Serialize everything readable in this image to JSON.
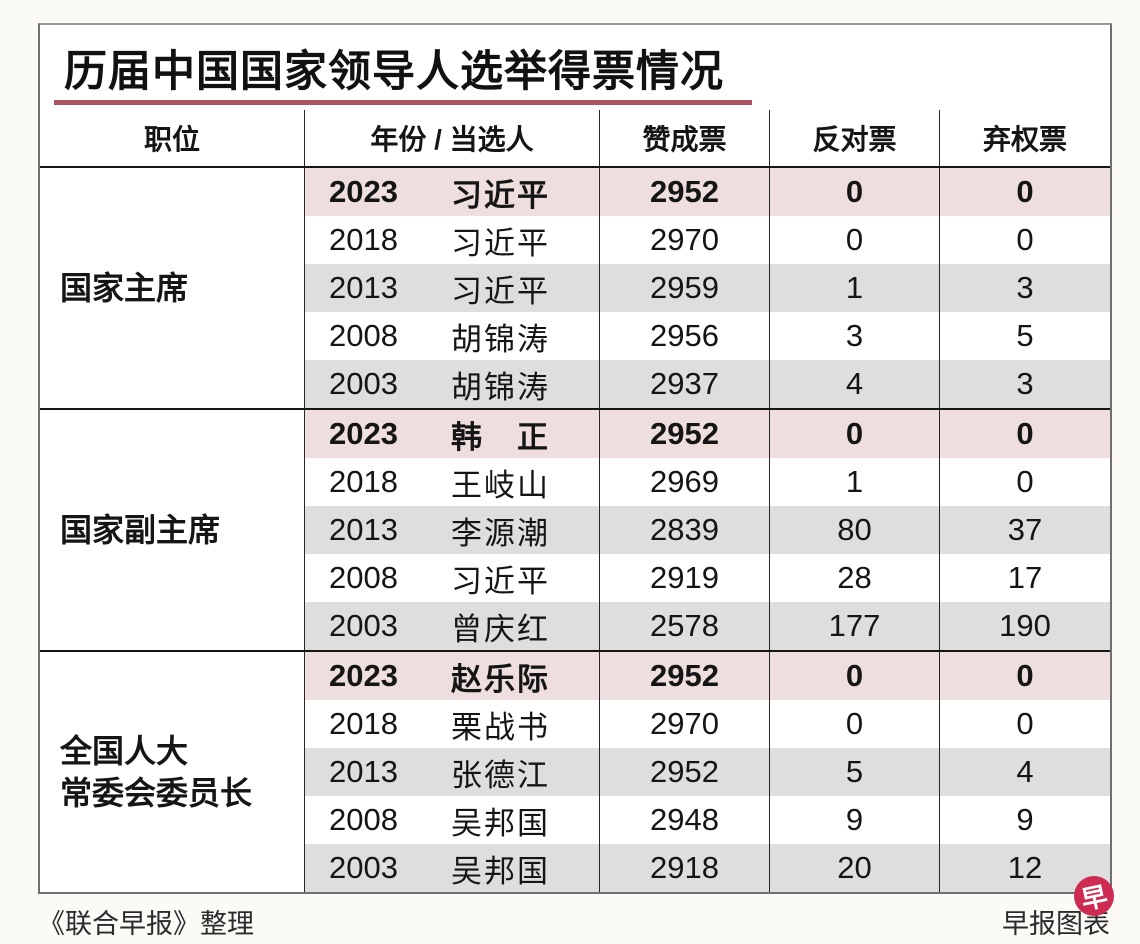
{
  "title": "历届中国国家领导人选举得票情况",
  "colors": {
    "title_underline": "#aa5460",
    "highlight_row": "#efdede",
    "shaded_row": "#dfdede",
    "logo_red": "#ce2b52"
  },
  "header": {
    "position": "职位",
    "year_person": "年份 / 当选人",
    "yes": "赞成票",
    "no": "反对票",
    "abstain": "弃权票"
  },
  "sections": [
    {
      "pos1": "国家主席",
      "pos2": "",
      "rows": [
        {
          "year": "2023",
          "name": "习近平",
          "yes": "2952",
          "no": "0",
          "abstain": "0"
        },
        {
          "year": "2018",
          "name": "习近平",
          "yes": "2970",
          "no": "0",
          "abstain": "0"
        },
        {
          "year": "2013",
          "name": "习近平",
          "yes": "2959",
          "no": "1",
          "abstain": "3"
        },
        {
          "year": "2008",
          "name": "胡锦涛",
          "yes": "2956",
          "no": "3",
          "abstain": "5"
        },
        {
          "year": "2003",
          "name": "胡锦涛",
          "yes": "2937",
          "no": "4",
          "abstain": "3"
        }
      ]
    },
    {
      "pos1": "国家副主席",
      "pos2": "",
      "rows": [
        {
          "year": "2023",
          "name": "韩　正",
          "yes": "2952",
          "no": "0",
          "abstain": "0"
        },
        {
          "year": "2018",
          "name": "王岐山",
          "yes": "2969",
          "no": "1",
          "abstain": "0"
        },
        {
          "year": "2013",
          "name": "李源潮",
          "yes": "2839",
          "no": "80",
          "abstain": "37"
        },
        {
          "year": "2008",
          "name": "习近平",
          "yes": "2919",
          "no": "28",
          "abstain": "17"
        },
        {
          "year": "2003",
          "name": "曾庆红",
          "yes": "2578",
          "no": "177",
          "abstain": "190"
        }
      ]
    },
    {
      "pos1": "全国人大",
      "pos2": "常委会委员长",
      "rows": [
        {
          "year": "2023",
          "name": "赵乐际",
          "yes": "2952",
          "no": "0",
          "abstain": "0"
        },
        {
          "year": "2018",
          "name": "栗战书",
          "yes": "2970",
          "no": "0",
          "abstain": "0"
        },
        {
          "year": "2013",
          "name": "张德江",
          "yes": "2952",
          "no": "5",
          "abstain": "4"
        },
        {
          "year": "2008",
          "name": "吴邦国",
          "yes": "2948",
          "no": "9",
          "abstain": "9"
        },
        {
          "year": "2003",
          "name": "吴邦国",
          "yes": "2918",
          "no": "20",
          "abstain": "12"
        }
      ]
    }
  ],
  "footer": {
    "left": "《联合早报》整理",
    "right": "早报图表",
    "logo_char": "早"
  },
  "chart_data": {
    "type": "table",
    "title": "历届中国国家领导人选举得票情况",
    "columns": [
      "职位",
      "年份",
      "当选人",
      "赞成票",
      "反对票",
      "弃权票"
    ],
    "rows": [
      [
        "国家主席",
        2023,
        "习近平",
        2952,
        0,
        0
      ],
      [
        "国家主席",
        2018,
        "习近平",
        2970,
        0,
        0
      ],
      [
        "国家主席",
        2013,
        "习近平",
        2959,
        1,
        3
      ],
      [
        "国家主席",
        2008,
        "胡锦涛",
        2956,
        3,
        5
      ],
      [
        "国家主席",
        2003,
        "胡锦涛",
        2937,
        4,
        3
      ],
      [
        "国家副主席",
        2023,
        "韩正",
        2952,
        0,
        0
      ],
      [
        "国家副主席",
        2018,
        "王岐山",
        2969,
        1,
        0
      ],
      [
        "国家副主席",
        2013,
        "李源潮",
        2839,
        80,
        37
      ],
      [
        "国家副主席",
        2008,
        "习近平",
        2919,
        28,
        17
      ],
      [
        "国家副主席",
        2003,
        "曾庆红",
        2578,
        177,
        190
      ],
      [
        "全国人大常委会委员长",
        2023,
        "赵乐际",
        2952,
        0,
        0
      ],
      [
        "全国人大常委会委员长",
        2018,
        "栗战书",
        2970,
        0,
        0
      ],
      [
        "全国人大常委会委员长",
        2013,
        "张德江",
        2952,
        5,
        4
      ],
      [
        "全国人大常委会委员长",
        2008,
        "吴邦国",
        2948,
        9,
        9
      ],
      [
        "全国人大常委会委员长",
        2003,
        "吴邦国",
        2918,
        20,
        12
      ]
    ],
    "layout_hints": {
      "highlighted_rows": "year 2023 rows (pink, bold)",
      "shaded_rows": "year 2013 and 2003 rows (light gray)",
      "source_left": "《联合早报》整理",
      "source_right": "早报图表"
    }
  }
}
